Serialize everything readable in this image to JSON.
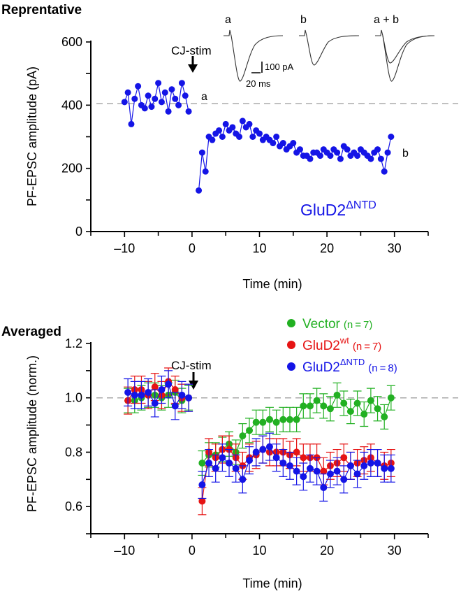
{
  "chart_data": [
    {
      "type": "scatter",
      "panel_title": "Reprentative",
      "xlabel": "Time (min)",
      "ylabel": "PF-EPSC amplitude (pA)",
      "xlim": [
        -15,
        35
      ],
      "ylim": [
        0,
        600
      ],
      "xticks": [
        -10,
        0,
        10,
        20,
        30
      ],
      "xtick_labels": [
        "–10",
        "0",
        "10",
        "20",
        "30"
      ],
      "yticks": [
        0,
        200,
        400,
        600
      ],
      "ytick_labels": [
        "0",
        "200",
        "400",
        "600"
      ],
      "baseline": 405,
      "annotation": "CJ-stim",
      "annotation_x": 0,
      "series_label": "GluD2",
      "series_label_sup": "ΔNTD",
      "color": "#1414e6",
      "point_labels": {
        "a": "a",
        "b": "b"
      },
      "pre": {
        "x_start": -10,
        "x_step": 0.5,
        "values": [
          410,
          440,
          340,
          420,
          460,
          400,
          390,
          430,
          395,
          420,
          470,
          410,
          440,
          380,
          450,
          420,
          400,
          470,
          430,
          380
        ]
      },
      "post": {
        "x_start": 1,
        "x_step": 0.5,
        "values": [
          130,
          250,
          190,
          300,
          290,
          310,
          320,
          300,
          340,
          320,
          330,
          310,
          300,
          350,
          330,
          340,
          300,
          320,
          310,
          290,
          300,
          290,
          280,
          300,
          270,
          280,
          260,
          270,
          280,
          250,
          260,
          240,
          240,
          230,
          250,
          250,
          240,
          260,
          250,
          240,
          260,
          250,
          230,
          270,
          260,
          240,
          250,
          240,
          260,
          250,
          240,
          230,
          250,
          260,
          230,
          190,
          250,
          300
        ]
      },
      "inset": {
        "labels": [
          "a",
          "b",
          "a + b"
        ],
        "scale_y": "100 pA",
        "scale_x": "20 ms"
      }
    },
    {
      "type": "line",
      "panel_title": "Averaged",
      "xlabel": "Time (min)",
      "ylabel": "PF-EPSC amplitude (norm.)",
      "xlim": [
        -15,
        35
      ],
      "ylim": [
        0.5,
        1.2
      ],
      "xticks": [
        -10,
        0,
        10,
        20,
        30
      ],
      "xtick_labels": [
        "–10",
        "0",
        "10",
        "20",
        "30"
      ],
      "yticks": [
        0.6,
        0.8,
        1.0,
        1.2
      ],
      "ytick_labels": [
        "0.6",
        "0.8",
        "1.0",
        "1.2"
      ],
      "baseline": 1.0,
      "annotation": "CJ-stim",
      "annotation_x": 0,
      "pre_x": [
        -9.5,
        -8.5,
        -7.5,
        -6.5,
        -5.5,
        -4.5,
        -3.5,
        -2.5,
        -1.5,
        -0.5
      ],
      "post_x": [
        1.5,
        2.5,
        3.5,
        4.5,
        5.5,
        6.5,
        7.5,
        8.5,
        9.5,
        10.5,
        11.5,
        12.5,
        13.5,
        14.5,
        15.5,
        16.5,
        17.5,
        18.5,
        19.5,
        20.5,
        21.5,
        22.5,
        23.5,
        24.5,
        25.5,
        26.5,
        27.5,
        28.5,
        29.5
      ],
      "series": [
        {
          "name": "Vector",
          "sup": "",
          "n": "(n = 7)",
          "color": "#22b022",
          "pre": [
            0.99,
            0.99,
            1.0,
            1.01,
            1.01,
            1.0,
            1.01,
            1.02,
            0.99,
            1.0
          ],
          "post": [
            0.76,
            0.79,
            0.79,
            0.81,
            0.83,
            0.8,
            0.86,
            0.88,
            0.91,
            0.91,
            0.92,
            0.91,
            0.92,
            0.92,
            0.92,
            0.97,
            0.97,
            0.99,
            0.97,
            0.96,
            1.01,
            0.98,
            0.95,
            0.98,
            0.94,
            0.99,
            0.96,
            0.93,
            1.0
          ],
          "err": 0.045
        },
        {
          "name": "GluD2",
          "sup": "wt",
          "n": "(n = 7)",
          "color": "#e61414",
          "pre": [
            0.99,
            1.03,
            1.03,
            1.01,
            1.04,
            1.01,
            1.06,
            1.03,
            1.0,
            1.0
          ],
          "post": [
            0.62,
            0.8,
            0.78,
            0.81,
            0.81,
            0.78,
            0.75,
            0.78,
            0.79,
            0.81,
            0.8,
            0.8,
            0.8,
            0.79,
            0.8,
            0.78,
            0.78,
            0.78,
            0.73,
            0.75,
            0.76,
            0.78,
            0.75,
            0.76,
            0.77,
            0.78,
            0.76,
            0.75,
            0.76
          ],
          "err": 0.05
        },
        {
          "name": "GluD2",
          "sup": "ΔNTD",
          "n": "(n = 8)",
          "color": "#1414e6",
          "pre": [
            1.02,
            1.01,
            1.01,
            1.02,
            0.98,
            1.03,
            1.05,
            0.97,
            1.01,
            1.0
          ],
          "post": [
            0.68,
            0.76,
            0.74,
            0.78,
            0.76,
            0.74,
            0.7,
            0.77,
            0.8,
            0.81,
            0.82,
            0.78,
            0.76,
            0.75,
            0.73,
            0.71,
            0.74,
            0.73,
            0.67,
            0.72,
            0.73,
            0.7,
            0.75,
            0.72,
            0.75,
            0.76,
            0.76,
            0.74,
            0.74
          ],
          "err": 0.05
        }
      ]
    }
  ]
}
